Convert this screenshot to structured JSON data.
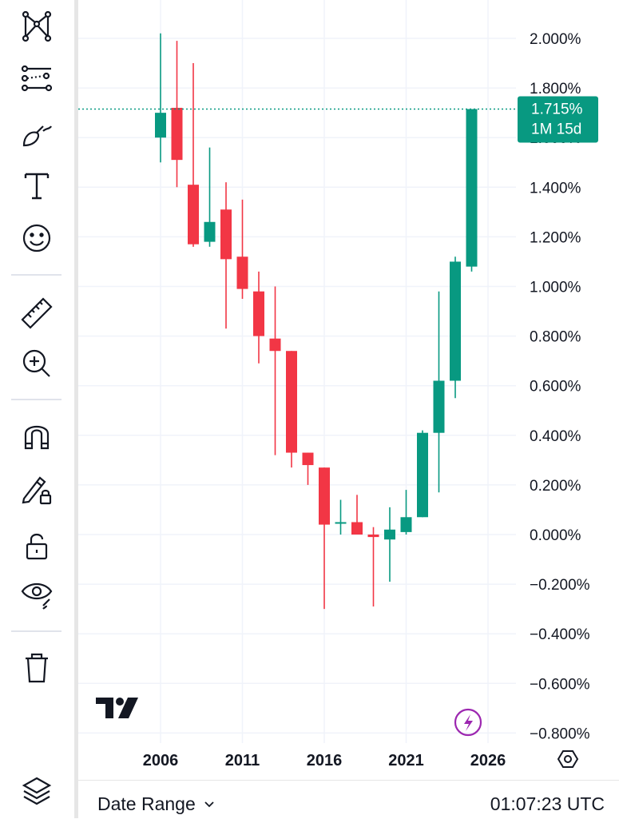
{
  "toolbar": {
    "tools": [
      {
        "name": "pattern-tool-icon",
        "y": 32
      },
      {
        "name": "lines-tool-icon",
        "y": 98
      },
      {
        "name": "brush-tool-icon",
        "y": 166
      },
      {
        "name": "text-tool-icon",
        "y": 232
      },
      {
        "name": "emoji-tool-icon",
        "y": 298
      },
      {
        "name": "ruler-tool-icon",
        "y": 390
      },
      {
        "name": "zoom-in-tool-icon",
        "y": 455
      },
      {
        "name": "magnet-tool-icon",
        "y": 545
      },
      {
        "name": "lock-drawings-tool-icon",
        "y": 612
      },
      {
        "name": "unlock-tool-icon",
        "y": 683
      },
      {
        "name": "hide-drawings-tool-icon",
        "y": 742
      },
      {
        "name": "trash-tool-icon",
        "y": 835
      },
      {
        "name": "layers-tool-icon",
        "y": 990
      }
    ]
  },
  "chart_data": {
    "type": "candlestick",
    "up_color": "#089981",
    "down_color": "#f23645",
    "y_axis": {
      "ticks": [
        "2.000%",
        "1.800%",
        "1.600%",
        "1.400%",
        "1.200%",
        "1.000%",
        "0.800%",
        "0.600%",
        "0.400%",
        "0.200%",
        "0.000%",
        "−0.200%",
        "−0.400%",
        "−0.600%",
        "−0.800%"
      ],
      "range": [
        -0.84,
        2.08
      ]
    },
    "x_axis": {
      "ticks": [
        "2006",
        "2011",
        "2016",
        "2021",
        "2026"
      ]
    },
    "last_price": {
      "value": 1.715,
      "label": "1.715%",
      "countdown": "1M 15d"
    },
    "candles": [
      {
        "year": 2006,
        "o": 1.6,
        "h": 2.02,
        "l": 1.5,
        "c": 1.7
      },
      {
        "year": 2007,
        "o": 1.72,
        "h": 1.99,
        "l": 1.4,
        "c": 1.51
      },
      {
        "year": 2008,
        "o": 1.41,
        "h": 1.9,
        "l": 1.16,
        "c": 1.17
      },
      {
        "year": 2009,
        "o": 1.18,
        "h": 1.56,
        "l": 1.16,
        "c": 1.26
      },
      {
        "year": 2010,
        "o": 1.31,
        "h": 1.42,
        "l": 0.83,
        "c": 1.11
      },
      {
        "year": 2011,
        "o": 1.12,
        "h": 1.35,
        "l": 0.95,
        "c": 0.99
      },
      {
        "year": 2012,
        "o": 0.98,
        "h": 1.06,
        "l": 0.69,
        "c": 0.8
      },
      {
        "year": 2013,
        "o": 0.79,
        "h": 1.0,
        "l": 0.32,
        "c": 0.74
      },
      {
        "year": 2014,
        "o": 0.74,
        "h": 0.74,
        "l": 0.27,
        "c": 0.33
      },
      {
        "year": 2015,
        "o": 0.33,
        "h": 0.33,
        "l": 0.2,
        "c": 0.28
      },
      {
        "year": 2016,
        "o": 0.27,
        "h": 0.27,
        "l": -0.3,
        "c": 0.04
      },
      {
        "year": 2017,
        "o": 0.05,
        "h": 0.14,
        "l": 0.0,
        "c": 0.05
      },
      {
        "year": 2018,
        "o": 0.05,
        "h": 0.16,
        "l": 0.0,
        "c": 0.0
      },
      {
        "year": 2019,
        "o": 0.0,
        "h": 0.03,
        "l": -0.29,
        "c": -0.01
      },
      {
        "year": 2020,
        "o": -0.02,
        "h": 0.11,
        "l": -0.19,
        "c": 0.02
      },
      {
        "year": 2021,
        "o": 0.01,
        "h": 0.18,
        "l": 0.0,
        "c": 0.07
      },
      {
        "year": 2022,
        "o": 0.07,
        "h": 0.42,
        "l": 0.07,
        "c": 0.41
      },
      {
        "year": 2023,
        "o": 0.41,
        "h": 0.98,
        "l": 0.17,
        "c": 0.62
      },
      {
        "year": 2024,
        "o": 0.62,
        "h": 1.12,
        "l": 0.55,
        "c": 1.1
      },
      {
        "year": 2025,
        "o": 1.08,
        "h": 1.715,
        "l": 1.06,
        "c": 1.715
      }
    ]
  },
  "bottom_bar": {
    "date_range_label": "Date Range",
    "clock": "01:07:23 UTC"
  }
}
